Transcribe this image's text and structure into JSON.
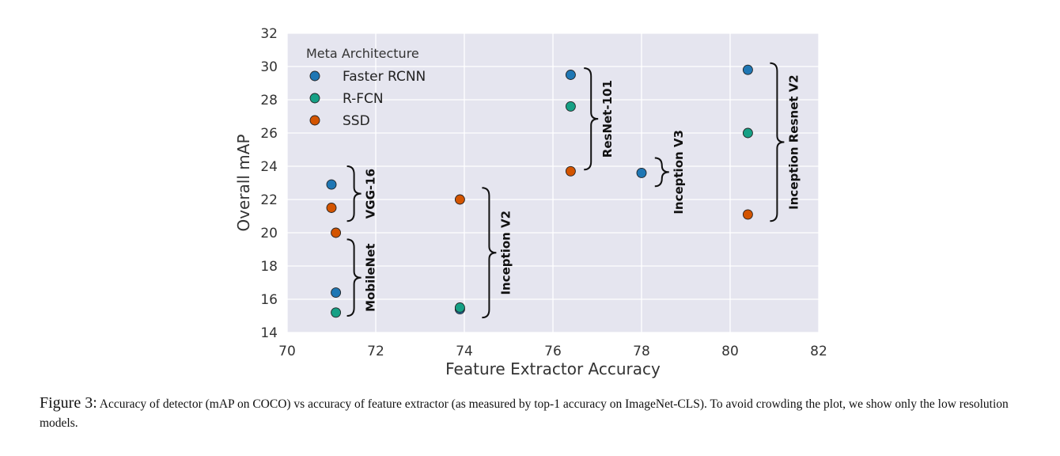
{
  "chart_data": {
    "type": "scatter",
    "xlabel": "Feature Extractor Accuracy",
    "ylabel": "Overall mAP",
    "xlim": [
      70,
      82
    ],
    "ylim": [
      14,
      32
    ],
    "xticks": [
      70,
      72,
      74,
      76,
      78,
      80,
      82
    ],
    "yticks": [
      14,
      16,
      18,
      20,
      22,
      24,
      26,
      28,
      30,
      32
    ],
    "grid": true,
    "legend": {
      "title": "Meta Architecture",
      "placement": "top-left"
    },
    "series": [
      {
        "name": "Faster RCNN",
        "color": "#1f77b4",
        "points": [
          {
            "x": 71.0,
            "y": 22.9
          },
          {
            "x": 71.1,
            "y": 16.4
          },
          {
            "x": 73.9,
            "y": 15.4
          },
          {
            "x": 76.4,
            "y": 29.5
          },
          {
            "x": 78.0,
            "y": 23.6
          },
          {
            "x": 80.4,
            "y": 29.8
          }
        ]
      },
      {
        "name": "R-FCN",
        "color": "#16a085",
        "points": [
          {
            "x": 71.1,
            "y": 15.2
          },
          {
            "x": 73.9,
            "y": 15.5
          },
          {
            "x": 76.4,
            "y": 27.6
          },
          {
            "x": 80.4,
            "y": 26.0
          }
        ]
      },
      {
        "name": "SSD",
        "color": "#d35400",
        "points": [
          {
            "x": 71.0,
            "y": 21.5
          },
          {
            "x": 71.1,
            "y": 20.0
          },
          {
            "x": 73.9,
            "y": 22.0
          },
          {
            "x": 76.4,
            "y": 23.7
          },
          {
            "x": 80.4,
            "y": 21.1
          }
        ]
      }
    ],
    "annotations": [
      {
        "text": "VGG-16",
        "x": 71.35,
        "y_range": [
          20.7,
          24.0
        ]
      },
      {
        "text": "MobileNet",
        "x": 71.35,
        "y_range": [
          15.0,
          19.6
        ]
      },
      {
        "text": "Inception V2",
        "x": 74.4,
        "y_range": [
          14.9,
          22.7
        ]
      },
      {
        "text": "ResNet-101",
        "x": 76.7,
        "y_range": [
          23.8,
          29.9
        ]
      },
      {
        "text": "Inception V3",
        "x": 78.3,
        "y_range": [
          22.8,
          24.5
        ]
      },
      {
        "text": "Inception Resnet V2",
        "x": 80.9,
        "y_range": [
          20.7,
          30.2
        ]
      }
    ]
  },
  "caption": {
    "label": "Figure 3:",
    "text": " Accuracy of detector (mAP on COCO) vs accuracy of feature extractor (as measured by top-1 accuracy on ImageNet-CLS). To avoid crowding the plot, we show only the low resolution models."
  }
}
